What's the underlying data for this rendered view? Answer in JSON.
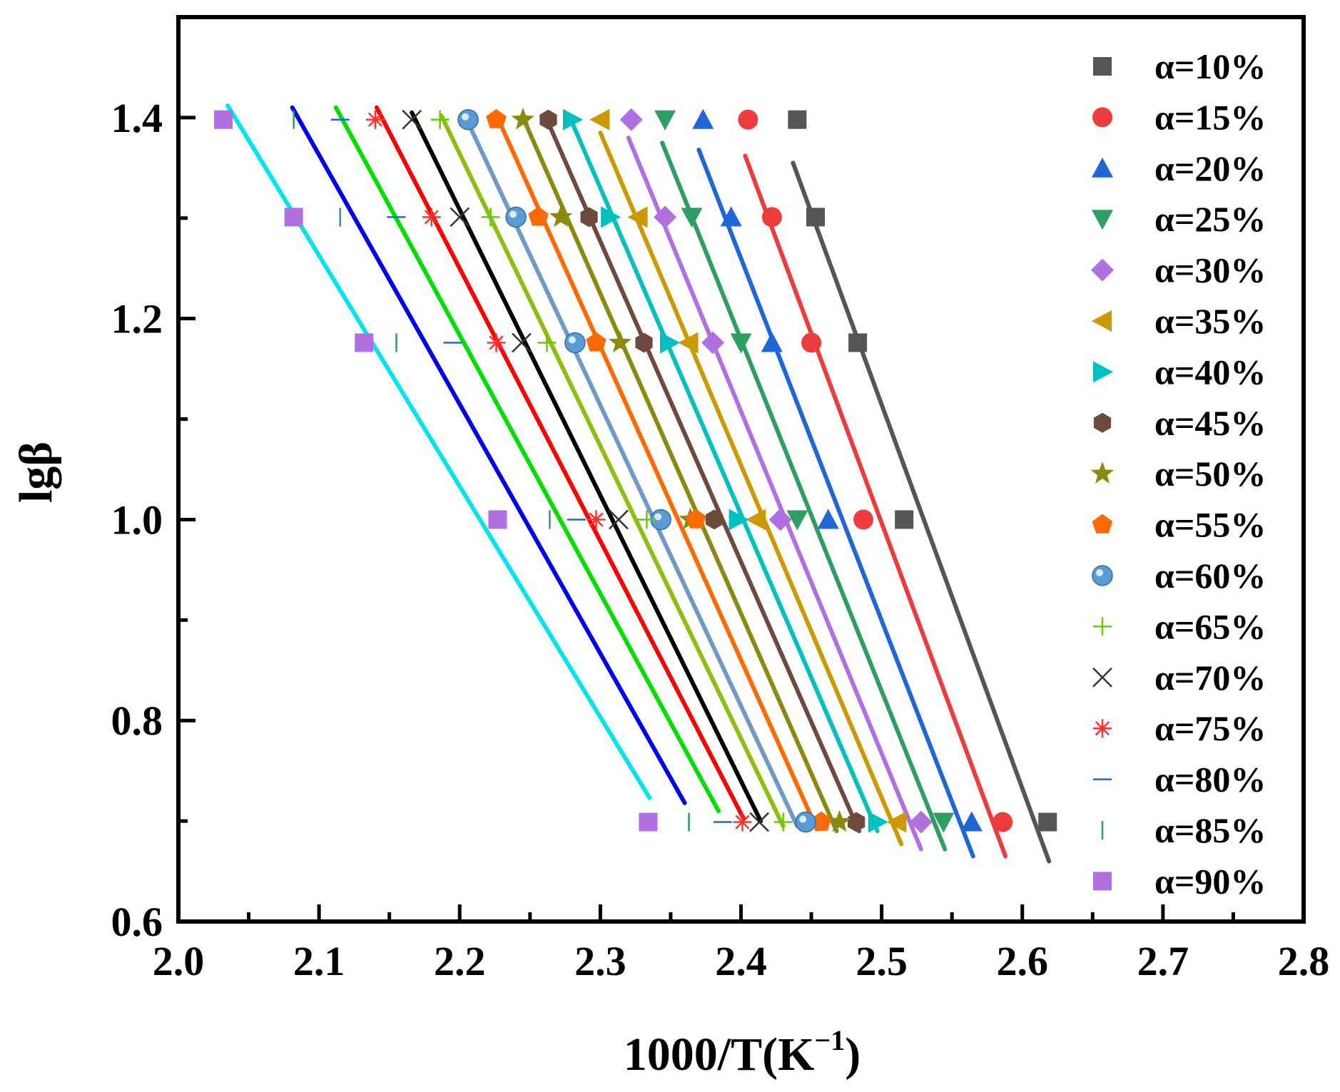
{
  "chart_data": {
    "type": "scatter",
    "title": "",
    "xlabel": "1000/T(K",
    "xlabel_sup": "−1",
    "xlabel_close": ")",
    "ylabel": "lgβ",
    "xlim": [
      2.0,
      2.8
    ],
    "ylim": [
      0.6,
      1.5
    ],
    "x_ticks": [
      {
        "value": 2.0,
        "label": "2.0"
      },
      {
        "value": 2.1,
        "label": "2.1"
      },
      {
        "value": 2.2,
        "label": "2.2"
      },
      {
        "value": 2.3,
        "label": "2.3"
      },
      {
        "value": 2.4,
        "label": "2.4"
      },
      {
        "value": 2.5,
        "label": "2.5"
      },
      {
        "value": 2.6,
        "label": "2.6"
      },
      {
        "value": 2.7,
        "label": "2.7"
      },
      {
        "value": 2.8,
        "label": "2.8"
      }
    ],
    "y_ticks": [
      {
        "value": 0.6,
        "label": "0.6"
      },
      {
        "value": 0.8,
        "label": "0.8"
      },
      {
        "value": 1.0,
        "label": "1.0"
      },
      {
        "value": 1.2,
        "label": "1.2"
      },
      {
        "value": 1.4,
        "label": "1.4"
      }
    ],
    "x_minor_ticks": [
      2.05,
      2.15,
      2.25,
      2.35,
      2.45,
      2.55,
      2.65,
      2.75
    ],
    "y_minor_ticks": [
      0.7,
      0.9,
      1.1,
      1.3
    ],
    "grid": false,
    "legend_position": "right",
    "y_levels": [
      1.398,
      1.301,
      1.176,
      1.0,
      0.699
    ],
    "series": [
      {
        "name": "α=10%",
        "marker": "square",
        "color": "#555555",
        "line_color": "#555555",
        "x": [
          2.44,
          2.453,
          2.483,
          2.516,
          2.618
        ],
        "fit_x": [
          2.437,
          2.619
        ],
        "fit_y": [
          1.355,
          0.66
        ]
      },
      {
        "name": "α=15%",
        "marker": "circle",
        "color": "#ee3b3b",
        "line_color": "#ee3b3b",
        "x": [
          2.405,
          2.422,
          2.45,
          2.487,
          2.586
        ],
        "fit_x": [
          2.403,
          2.588
        ],
        "fit_y": [
          1.362,
          0.665
        ]
      },
      {
        "name": "α=20%",
        "marker": "triangle-up",
        "color": "#1f66d8",
        "line_color": "#1f66d8",
        "x": [
          2.373,
          2.393,
          2.422,
          2.462,
          2.564
        ],
        "fit_x": [
          2.37,
          2.565
        ],
        "fit_y": [
          1.368,
          0.665
        ]
      },
      {
        "name": "α=25%",
        "marker": "triangle-down",
        "color": "#2e9e63",
        "line_color": "#2e9e63",
        "x": [
          2.346,
          2.365,
          2.4,
          2.44,
          2.544
        ],
        "fit_x": [
          2.344,
          2.545
        ],
        "fit_y": [
          1.375,
          0.672
        ]
      },
      {
        "name": "α=30%",
        "marker": "diamond",
        "color": "#b070e0",
        "line_color": "#b070e0",
        "x": [
          2.322,
          2.346,
          2.38,
          2.428,
          2.528
        ],
        "fit_x": [
          2.32,
          2.528
        ],
        "fit_y": [
          1.38,
          0.672
        ]
      },
      {
        "name": "α=35%",
        "marker": "triangle-left",
        "color": "#cc9900",
        "line_color": "#cc9900",
        "x": [
          2.3,
          2.327,
          2.363,
          2.411,
          2.511
        ],
        "fit_x": [
          2.3,
          2.514
        ],
        "fit_y": [
          1.385,
          0.677
        ]
      },
      {
        "name": "α=40%",
        "marker": "triangle-right",
        "color": "#00c0c0",
        "line_color": "#00c0c0",
        "x": [
          2.28,
          2.307,
          2.349,
          2.398,
          2.497
        ],
        "fit_x": [
          2.28,
          2.497
        ],
        "fit_y": [
          1.395,
          0.69
        ]
      },
      {
        "name": "α=45%",
        "marker": "hexagon",
        "color": "#6e4a3c",
        "line_color": "#6e4a3c",
        "x": [
          2.263,
          2.292,
          2.331,
          2.381,
          2.482
        ],
        "fit_x": [
          2.262,
          2.484
        ],
        "fit_y": [
          1.398,
          0.69
        ]
      },
      {
        "name": "α=50%",
        "marker": "star",
        "color": "#8a8a10",
        "line_color": "#8a8a10",
        "x": [
          2.245,
          2.272,
          2.314,
          2.364,
          2.47
        ],
        "fit_x": [
          2.245,
          2.468
        ],
        "fit_y": [
          1.4,
          0.69
        ]
      },
      {
        "name": "α=55%",
        "marker": "pentagon",
        "color": "#ff6a00",
        "line_color": "#ff6a00",
        "x": [
          2.226,
          2.256,
          2.297,
          2.368,
          2.457
        ],
        "fit_x": [
          2.226,
          2.454
        ],
        "fit_y": [
          1.403,
          0.692
        ]
      },
      {
        "name": "α=60%",
        "marker": "sphere",
        "color": "#5b9bd5",
        "line_color": "#7099c8",
        "x": [
          2.206,
          2.24,
          2.282,
          2.343,
          2.446
        ],
        "fit_x": [
          2.206,
          2.44
        ],
        "fit_y": [
          1.395,
          0.695
        ]
      },
      {
        "name": "α=65%",
        "marker": "plus",
        "color": "#66cc00",
        "line_color": "#8cbf10",
        "x": [
          2.186,
          2.222,
          2.262,
          2.333,
          2.43
        ],
        "fit_x": [
          2.187,
          2.43
        ],
        "fit_y": [
          1.402,
          0.695
        ]
      },
      {
        "name": "α=70%",
        "marker": "x",
        "color": "#333333",
        "line_color": "#000000",
        "x": [
          2.166,
          2.2,
          2.244,
          2.313,
          2.413
        ],
        "fit_x": [
          2.166,
          2.414
        ],
        "fit_y": [
          1.405,
          0.7
        ]
      },
      {
        "name": "α=75%",
        "marker": "asterisk",
        "color": "#ff3030",
        "line_color": "#ff0000",
        "x": [
          2.14,
          2.18,
          2.226,
          2.297,
          2.401
        ],
        "fit_x": [
          2.141,
          2.402
        ],
        "fit_y": [
          1.41,
          0.702
        ]
      },
      {
        "name": "α=80%",
        "marker": "hline",
        "color": "#1f66d8",
        "line_color": "#00e000",
        "x": [
          2.115,
          2.155,
          2.195,
          2.283,
          2.387
        ],
        "fit_x": [
          2.112,
          2.384
        ],
        "fit_y": [
          1.41,
          0.71
        ]
      },
      {
        "name": "α=85%",
        "marker": "vline",
        "color": "#2e9e63",
        "line_color": "#0000ee",
        "x": [
          2.082,
          2.115,
          2.155,
          2.264,
          2.363
        ],
        "fit_x": [
          2.081,
          2.36
        ],
        "fit_y": [
          1.41,
          0.718
        ]
      },
      {
        "name": "α=90%",
        "marker": "square",
        "color": "#b070e0",
        "line_color": "#00e5ee",
        "x": [
          2.032,
          2.082,
          2.132,
          2.227,
          2.334
        ],
        "fit_x": [
          2.035,
          2.335
        ],
        "fit_y": [
          1.412,
          0.723
        ]
      }
    ]
  }
}
